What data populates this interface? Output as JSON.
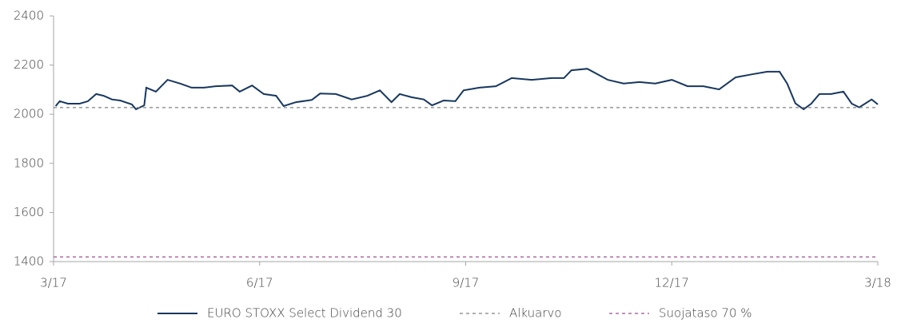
{
  "chart_data": {
    "type": "line",
    "xlim": [
      0,
      12
    ],
    "xticks": [
      {
        "value": 0,
        "label": "3/17"
      },
      {
        "value": 3,
        "label": "6/17"
      },
      {
        "value": 6,
        "label": "9/17"
      },
      {
        "value": 9,
        "label": "12/17"
      },
      {
        "value": 12,
        "label": "3/18"
      }
    ],
    "ylim": [
      1400,
      2400
    ],
    "yticks": [
      1400,
      1600,
      1800,
      2000,
      2200,
      2400
    ],
    "grid": false,
    "legend": "bottom",
    "series": [
      {
        "name": "EURO STOXX Select Dividend 30",
        "color": "#17375e",
        "style": "solid",
        "x": [
          0.03,
          0.09,
          0.21,
          0.38,
          0.5,
          0.62,
          0.73,
          0.85,
          0.97,
          1.14,
          1.2,
          1.32,
          1.35,
          1.49,
          1.66,
          1.84,
          2.01,
          2.19,
          2.36,
          2.6,
          2.71,
          2.89,
          3.06,
          3.24,
          3.35,
          3.53,
          3.76,
          3.88,
          4.11,
          4.34,
          4.57,
          4.75,
          4.92,
          5.04,
          5.21,
          5.39,
          5.51,
          5.68,
          5.85,
          5.97,
          6.2,
          6.44,
          6.67,
          6.96,
          7.25,
          7.43,
          7.54,
          7.77,
          8.07,
          8.3,
          8.53,
          8.76,
          9.0,
          9.23,
          9.46,
          9.69,
          9.93,
          10.16,
          10.39,
          10.57,
          10.68,
          10.8,
          10.92,
          11.03,
          11.15,
          11.32,
          11.5,
          11.62,
          11.73,
          11.91,
          12.0
        ],
        "values": [
          2033,
          2053,
          2043,
          2043,
          2053,
          2082,
          2075,
          2060,
          2056,
          2040,
          2020,
          2036,
          2108,
          2092,
          2140,
          2125,
          2108,
          2108,
          2114,
          2117,
          2092,
          2117,
          2082,
          2075,
          2033,
          2049,
          2058,
          2084,
          2082,
          2060,
          2075,
          2097,
          2049,
          2082,
          2069,
          2060,
          2036,
          2056,
          2053,
          2097,
          2108,
          2114,
          2147,
          2140,
          2147,
          2147,
          2179,
          2185,
          2140,
          2125,
          2131,
          2125,
          2140,
          2114,
          2114,
          2101,
          2150,
          2162,
          2173,
          2173,
          2125,
          2044,
          2020,
          2043,
          2082,
          2082,
          2092,
          2043,
          2028,
          2060,
          2040
        ]
      },
      {
        "name": "Alkuarvo",
        "color": "#808080",
        "style": "dashed",
        "x": [
          0,
          12
        ],
        "values": [
          2027,
          2027
        ]
      },
      {
        "name": "Suojataso 70 %",
        "color": "#9e4f91",
        "style": "dashed",
        "x": [
          0,
          12
        ],
        "values": [
          1419,
          1419
        ]
      }
    ]
  }
}
